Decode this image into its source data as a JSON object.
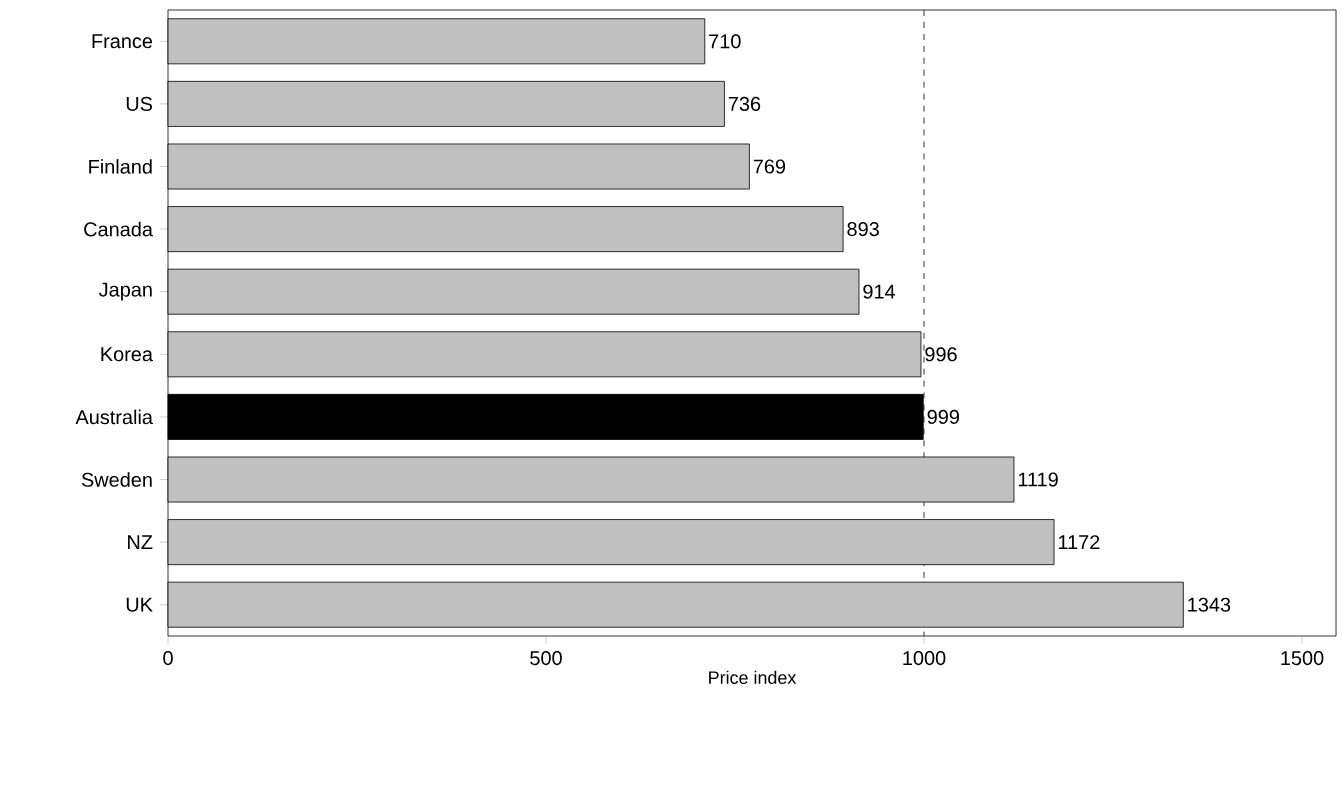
{
  "chart_data": {
    "type": "bar",
    "orientation": "horizontal",
    "xlabel": "Price index",
    "categories": [
      "France",
      "US",
      "Finland",
      "Canada",
      "Japan",
      "Korea",
      "Australia",
      "Sweden",
      "NZ",
      "UK"
    ],
    "values": [
      710,
      736,
      769,
      893,
      914,
      996,
      999,
      1119,
      1172,
      1343
    ],
    "colors": [
      "#c0c0c0",
      "#c0c0c0",
      "#c0c0c0",
      "#c0c0c0",
      "#c0c0c0",
      "#c0c0c0",
      "#000000",
      "#c0c0c0",
      "#c0c0c0",
      "#c0c0c0"
    ],
    "xlim": [
      0,
      1545
    ],
    "xticks": [
      0,
      500,
      1000,
      1500
    ],
    "ref_lines": [
      {
        "axis": "x",
        "value": 1000,
        "color": "#000000",
        "line_style": "dashed"
      }
    ],
    "data_labels": true,
    "grid": false
  }
}
